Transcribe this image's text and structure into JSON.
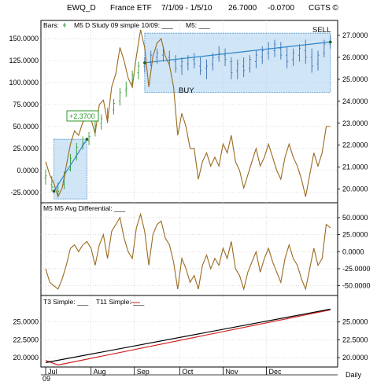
{
  "header": {
    "symbol": "EWQ_D",
    "name": "France ETF",
    "date_range": "7/1/09 - 1/5/10",
    "last": "26.7000",
    "change": "-0.0700",
    "source": "CGTS ©"
  },
  "colors": {
    "price_line": "#9a6a1e",
    "bar_green": "#2e9a2e",
    "bar_blue": "#3a6fb0",
    "box_fill": "#a9d0ee",
    "box_stroke": "#5a9ad0",
    "trend_line": "#2f86c8",
    "t3_line": "#000000",
    "t11_line": "#d02020",
    "grid": "#c8c8c8",
    "box_label_green": "#2e9a2e"
  },
  "chart_data": [
    {
      "type": "line",
      "panel": "top",
      "legend": {
        "bars_label": "Bars:",
        "study_label": "M5 D Study 09 simple 10/09: ___",
        "m5_label": "M5: ___"
      },
      "annotations": {
        "buy": "BUY",
        "sell": "SELL",
        "gain": "+2.3700"
      },
      "left_ticks": [
        "150.0000",
        "125.0000",
        "100.0000",
        "75.0000",
        "50.0000",
        "25.0000",
        "0.0000",
        "-25.0000"
      ],
      "left_tick_values": [
        150,
        125,
        100,
        75,
        50,
        25,
        0,
        -25
      ],
      "right_ticks": [
        "27.0000",
        "26.0000",
        "25.0000",
        "24.0000",
        "23.0000",
        "22.0000",
        "21.0000",
        "20.0000"
      ],
      "right_tick_values": [
        27,
        26,
        25,
        24,
        23,
        22,
        21,
        20
      ],
      "ylim_left": [
        -35,
        160
      ],
      "ylim_right": [
        19.45,
        27.25
      ],
      "x": [
        0,
        2,
        4,
        6,
        8,
        10,
        12,
        14,
        16,
        18,
        20,
        22,
        24,
        26,
        28,
        30,
        32,
        34,
        36,
        38,
        40,
        42,
        44,
        46,
        48,
        50,
        52,
        54,
        56,
        58,
        60,
        62,
        64,
        66,
        68,
        70,
        72,
        74,
        76,
        78,
        80,
        82,
        84,
        86,
        88,
        90,
        92,
        94,
        96,
        98,
        100,
        102,
        104,
        106,
        108,
        110,
        112,
        114,
        116,
        118,
        120,
        122,
        124,
        126,
        128,
        130,
        132,
        134,
        136,
        138
      ],
      "study_values": [
        10,
        -5,
        -15,
        -30,
        -20,
        5,
        30,
        45,
        40,
        55,
        60,
        58,
        42,
        75,
        80,
        55,
        95,
        110,
        140,
        125,
        105,
        95,
        130,
        160,
        140,
        95,
        130,
        145,
        150,
        130,
        120,
        95,
        40,
        65,
        50,
        25,
        25,
        -10,
        10,
        20,
        5,
        15,
        5,
        30,
        20,
        40,
        10,
        0,
        -20,
        -5,
        10,
        25,
        5,
        15,
        30,
        15,
        0,
        -10,
        15,
        30,
        15,
        5,
        -10,
        -30,
        -5,
        20,
        5,
        20,
        50,
        50
      ],
      "price_bars": [
        {
          "x": 0,
          "o": 20.5,
          "h": 20.9,
          "l": 20.2,
          "c": 20.6
        },
        {
          "x": 3,
          "o": 20.2,
          "h": 20.6,
          "l": 19.9,
          "c": 20.1
        },
        {
          "x": 6,
          "o": 20.0,
          "h": 20.3,
          "l": 19.7,
          "c": 19.9
        },
        {
          "x": 9,
          "o": 20.2,
          "h": 20.8,
          "l": 20.0,
          "c": 20.6
        },
        {
          "x": 12,
          "o": 20.9,
          "h": 21.6,
          "l": 20.8,
          "c": 21.4
        },
        {
          "x": 15,
          "o": 21.5,
          "h": 22.1,
          "l": 21.3,
          "c": 21.9
        },
        {
          "x": 18,
          "o": 22.0,
          "h": 22.4,
          "l": 21.8,
          "c": 22.1
        },
        {
          "x": 21,
          "o": 22.2,
          "h": 22.6,
          "l": 22.0,
          "c": 22.4
        },
        {
          "x": 24,
          "o": 22.6,
          "h": 23.1,
          "l": 22.4,
          "c": 22.9
        },
        {
          "x": 27,
          "o": 23.0,
          "h": 23.4,
          "l": 22.7,
          "c": 23.2
        },
        {
          "x": 30,
          "o": 23.3,
          "h": 23.7,
          "l": 23.0,
          "c": 23.5
        },
        {
          "x": 33,
          "o": 23.6,
          "h": 24.1,
          "l": 23.4,
          "c": 23.9
        },
        {
          "x": 36,
          "o": 24.0,
          "h": 24.6,
          "l": 23.8,
          "c": 24.4
        },
        {
          "x": 39,
          "o": 24.5,
          "h": 24.9,
          "l": 24.2,
          "c": 24.6
        },
        {
          "x": 42,
          "o": 24.8,
          "h": 25.4,
          "l": 24.6,
          "c": 25.2
        },
        {
          "x": 45,
          "o": 25.3,
          "h": 25.8,
          "l": 25.0,
          "c": 25.6
        },
        {
          "x": 48,
          "o": 25.6,
          "h": 26.0,
          "l": 25.3,
          "c": 25.7
        },
        {
          "x": 51,
          "o": 25.8,
          "h": 26.3,
          "l": 25.6,
          "c": 26.1
        },
        {
          "x": 54,
          "o": 26.0,
          "h": 26.4,
          "l": 25.7,
          "c": 26.2
        },
        {
          "x": 57,
          "o": 26.1,
          "h": 26.5,
          "l": 25.8,
          "c": 26.3
        },
        {
          "x": 60,
          "o": 26.0,
          "h": 26.3,
          "l": 25.6,
          "c": 25.9
        },
        {
          "x": 63,
          "o": 25.8,
          "h": 26.1,
          "l": 25.3,
          "c": 25.5
        },
        {
          "x": 66,
          "o": 25.6,
          "h": 26.0,
          "l": 25.2,
          "c": 25.8
        },
        {
          "x": 69,
          "o": 25.7,
          "h": 26.1,
          "l": 25.4,
          "c": 26.0
        },
        {
          "x": 72,
          "o": 25.9,
          "h": 26.2,
          "l": 25.5,
          "c": 25.7
        },
        {
          "x": 75,
          "o": 25.6,
          "h": 26.0,
          "l": 25.2,
          "c": 25.4
        },
        {
          "x": 78,
          "o": 25.5,
          "h": 25.9,
          "l": 25.0,
          "c": 25.6
        },
        {
          "x": 81,
          "o": 25.7,
          "h": 26.2,
          "l": 25.4,
          "c": 26.0
        },
        {
          "x": 84,
          "o": 26.0,
          "h": 26.5,
          "l": 25.8,
          "c": 26.2
        },
        {
          "x": 87,
          "o": 26.1,
          "h": 26.4,
          "l": 25.6,
          "c": 25.9
        },
        {
          "x": 90,
          "o": 25.8,
          "h": 26.0,
          "l": 25.0,
          "c": 25.3
        },
        {
          "x": 93,
          "o": 25.4,
          "h": 25.9,
          "l": 25.0,
          "c": 25.7
        },
        {
          "x": 96,
          "o": 25.6,
          "h": 26.0,
          "l": 25.1,
          "c": 25.4
        },
        {
          "x": 99,
          "o": 25.5,
          "h": 26.1,
          "l": 25.3,
          "c": 25.9
        },
        {
          "x": 102,
          "o": 25.8,
          "h": 26.3,
          "l": 25.5,
          "c": 26.1
        },
        {
          "x": 105,
          "o": 26.0,
          "h": 26.5,
          "l": 25.7,
          "c": 26.3
        },
        {
          "x": 108,
          "o": 26.2,
          "h": 26.7,
          "l": 25.9,
          "c": 26.4
        },
        {
          "x": 111,
          "o": 26.3,
          "h": 26.8,
          "l": 26.0,
          "c": 26.6
        },
        {
          "x": 114,
          "o": 26.4,
          "h": 26.7,
          "l": 25.9,
          "c": 26.1
        },
        {
          "x": 117,
          "o": 26.1,
          "h": 26.5,
          "l": 25.5,
          "c": 25.8
        },
        {
          "x": 120,
          "o": 25.9,
          "h": 26.4,
          "l": 25.6,
          "c": 26.2
        },
        {
          "x": 123,
          "o": 26.1,
          "h": 26.6,
          "l": 25.8,
          "c": 26.4
        },
        {
          "x": 126,
          "o": 26.3,
          "h": 26.8,
          "l": 25.7,
          "c": 26.0
        },
        {
          "x": 129,
          "o": 26.0,
          "h": 26.4,
          "l": 25.3,
          "c": 25.6
        },
        {
          "x": 132,
          "o": 25.7,
          "h": 26.3,
          "l": 25.4,
          "c": 26.1
        },
        {
          "x": 135,
          "o": 26.2,
          "h": 26.8,
          "l": 26.0,
          "c": 26.6
        },
        {
          "x": 138,
          "o": 26.6,
          "h": 27.0,
          "l": 26.4,
          "c": 26.7
        }
      ],
      "trades": [
        {
          "entry_x": 4,
          "entry_price": 19.9,
          "exit_x": 20,
          "exit_price": 22.27,
          "label": "+2.3700"
        },
        {
          "entry_x": 48,
          "entry_price": 25.75,
          "exit_x": 138,
          "exit_price": 26.7
        }
      ],
      "boxes": [
        {
          "x0": 4,
          "x1": 20,
          "y0": 19.55,
          "y1": 22.27
        },
        {
          "x0": 48,
          "x1": 138,
          "y0": 24.4,
          "y1": 27.1
        }
      ]
    },
    {
      "type": "line",
      "panel": "middle",
      "title": "M5  M5 Avg Differential: ___",
      "ticks": [
        "50.0000",
        "25.0000",
        "0.0000",
        "-25.0000",
        "-50.0000"
      ],
      "tick_values": [
        50,
        25,
        0,
        -25,
        -50
      ],
      "ylim": [
        -62,
        58
      ],
      "x": [
        0,
        2,
        4,
        6,
        8,
        10,
        12,
        14,
        16,
        18,
        20,
        22,
        24,
        26,
        28,
        30,
        32,
        34,
        36,
        38,
        40,
        42,
        44,
        46,
        48,
        50,
        52,
        54,
        56,
        58,
        60,
        62,
        64,
        66,
        68,
        70,
        72,
        74,
        76,
        78,
        80,
        82,
        84,
        86,
        88,
        90,
        92,
        94,
        96,
        98,
        100,
        102,
        104,
        106,
        108,
        110,
        112,
        114,
        116,
        118,
        120,
        122,
        124,
        126,
        128,
        130,
        132,
        134,
        136,
        138
      ],
      "values": [
        -25,
        -45,
        -50,
        -55,
        -40,
        -20,
        5,
        10,
        0,
        10,
        15,
        5,
        -20,
        10,
        25,
        -10,
        30,
        40,
        50,
        20,
        0,
        -10,
        35,
        55,
        30,
        -20,
        25,
        40,
        45,
        20,
        10,
        -15,
        -55,
        -10,
        -25,
        -45,
        -35,
        -55,
        -20,
        -5,
        -25,
        -10,
        -20,
        5,
        -10,
        15,
        -25,
        -35,
        -55,
        -30,
        -15,
        0,
        -30,
        -10,
        5,
        -15,
        -30,
        -45,
        -10,
        10,
        -10,
        -20,
        -40,
        -55,
        -25,
        5,
        -20,
        -10,
        40,
        35
      ]
    },
    {
      "type": "line",
      "panel": "bottom",
      "legend": {
        "t3_label": "T3 Simple: ___",
        "t11_label": "T11 Simple: ___"
      },
      "left_ticks": [
        "25.0000",
        "22.5000",
        "20.0000"
      ],
      "left_tick_values": [
        25,
        22.5,
        20
      ],
      "right_ticks": [
        "25.0000",
        "22.5000",
        "20.0000"
      ],
      "right_tick_values": [
        25,
        22.5,
        20
      ],
      "ylim": [
        18.9,
        27.4
      ],
      "x": [
        0,
        138
      ],
      "series": [
        {
          "name": "T3 Simple",
          "color": "#000000",
          "values": [
            19.3,
            26.8
          ]
        },
        {
          "name": "T11 Simple",
          "color": "#d02020",
          "values": [
            19.6,
            26.7
          ]
        }
      ],
      "t11_start_detail": {
        "x": [
          0,
          6,
          138
        ],
        "values": [
          19.6,
          18.95,
          26.7
        ]
      }
    }
  ],
  "x_axis": {
    "range": [
      0,
      140
    ],
    "month_labels": [
      "Jul",
      "Aug",
      "Sep",
      "Oct",
      "Nov",
      "Dec"
    ],
    "month_positions": [
      0,
      22,
      43,
      65,
      86,
      107
    ],
    "month_end_position": 130,
    "year_label": "09",
    "period_label": "Daily"
  }
}
